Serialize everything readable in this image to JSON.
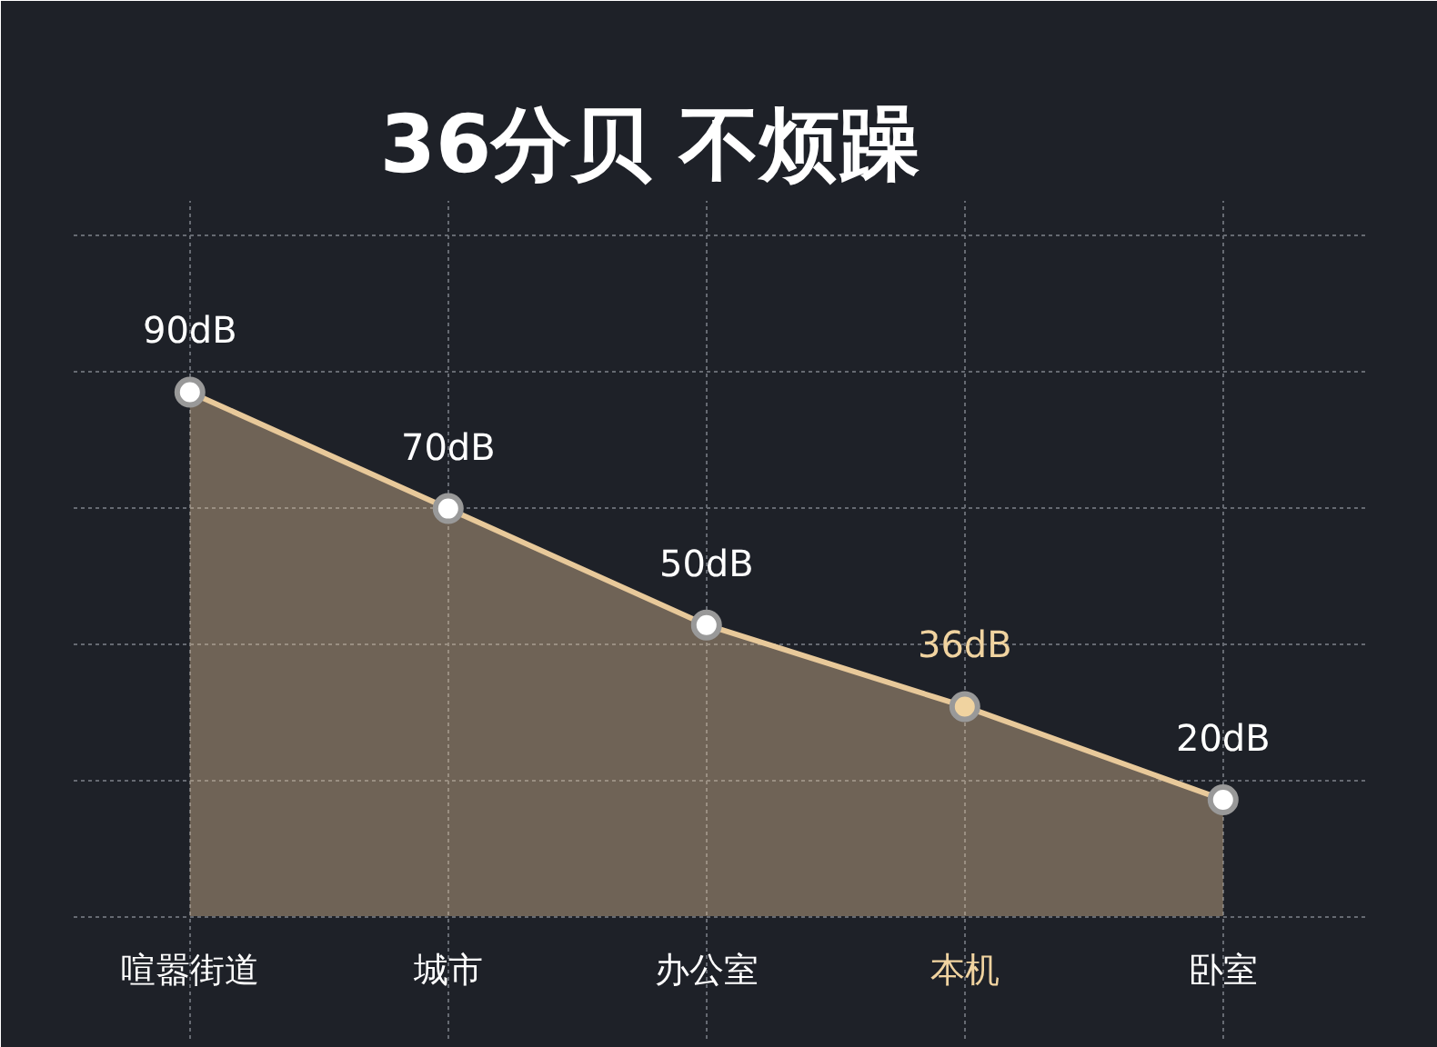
{
  "chart_data": {
    "type": "area",
    "title": "36分贝      不烦躁",
    "categories": [
      "喧嚣街道",
      "城市",
      "办公室",
      "本机",
      "卧室"
    ],
    "series": [
      {
        "color": "#e8c99a",
        "values": [
          90,
          70,
          50,
          36,
          20
        ],
        "value_labels": [
          "90dB",
          "70dB",
          "50dB",
          "36dB",
          "20dB"
        ],
        "colors": [
          "#ffffff",
          "#ffffff",
          "#ffffff",
          "#f0d3a0",
          "#ffffff"
        ]
      }
    ],
    "marker": "circle",
    "grid": true
  }
}
